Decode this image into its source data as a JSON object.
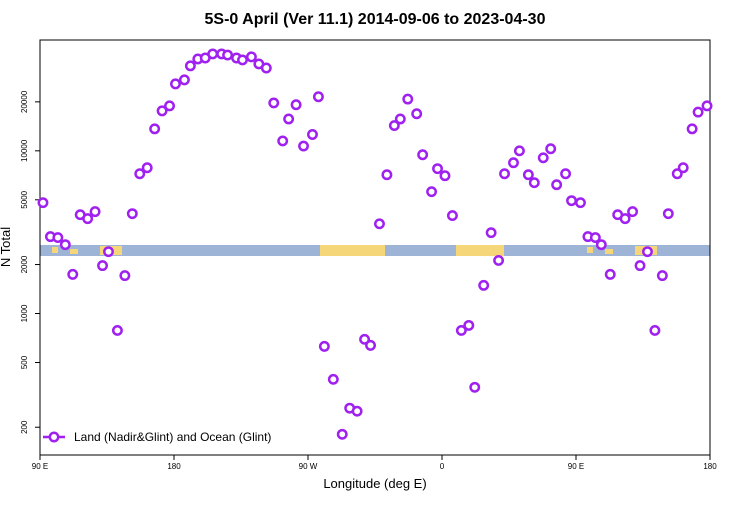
{
  "chart_data": {
    "type": "scatter",
    "title": "5S-0 April (Ver 11.1)   2014-09-06 to 2023-04-30",
    "xlabel": "Longitude (deg E)",
    "ylabel": "N Total",
    "xlim": [
      90,
      540
    ],
    "xticks": [
      {
        "value": 90,
        "label": "90 E"
      },
      {
        "value": 180,
        "label": "180"
      },
      {
        "value": 270,
        "label": "90 W"
      },
      {
        "value": 360,
        "label": "0"
      },
      {
        "value": 450,
        "label": "90 E"
      },
      {
        "value": 540,
        "label": "180"
      }
    ],
    "ylim": [
      135,
      48000
    ],
    "yticks": [
      200,
      500,
      1000,
      2000,
      5000,
      10000,
      20000
    ],
    "ylog": true,
    "legend": "lower left",
    "x": [
      92,
      97,
      102,
      107,
      112,
      117,
      122,
      127,
      132,
      136,
      142,
      147,
      152,
      157,
      162,
      167,
      172,
      177,
      181,
      187,
      191,
      196,
      201,
      206,
      212,
      216,
      222,
      226,
      232,
      237,
      242,
      247,
      253,
      257,
      262,
      267,
      273,
      277,
      281,
      287,
      293,
      298,
      303,
      308,
      312,
      318,
      323,
      328,
      332,
      337,
      343,
      347,
      353,
      357,
      362,
      367,
      373,
      378,
      382,
      388,
      393,
      398,
      402,
      408,
      412,
      418,
      422,
      428,
      433,
      437,
      443,
      447,
      453,
      458,
      463,
      467,
      473,
      478,
      483,
      488,
      493,
      498,
      503,
      508,
      512,
      518,
      522,
      528,
      532,
      538
    ],
    "series": [
      {
        "name": "Land (Nadir&Glint) and Ocean (Glint)",
        "color": "#a020f0",
        "values": [
          4800,
          2970,
          2930,
          2650,
          1740,
          4050,
          3830,
          4230,
          1970,
          2400,
          787,
          1710,
          4110,
          7230,
          7870,
          13650,
          17600,
          18900,
          25800,
          27300,
          33300,
          36700,
          37200,
          39400,
          39400,
          38800,
          37200,
          36200,
          37800,
          34200,
          32300,
          19700,
          11500,
          15700,
          19200,
          10700,
          12600,
          21500,
          628,
          394,
          181,
          262,
          251,
          694,
          637,
          3560,
          7130,
          14300,
          15700,
          20800,
          16900,
          9460,
          5610,
          7770,
          7030,
          4000,
          787,
          845,
          352,
          1490,
          3140,
          2120,
          7230,
          8450,
          10000,
          7130,
          6370,
          9060,
          10300,
          6190,
          7230,
          4940,
          4800,
          2970,
          2930,
          2650,
          1740,
          4050,
          3830,
          4230,
          1970,
          2400,
          787,
          1710,
          4110,
          7230,
          7870,
          13650,
          17300,
          18900
        ]
      }
    ]
  }
}
